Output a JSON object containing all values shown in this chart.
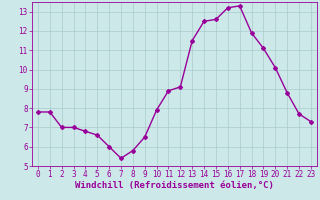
{
  "x": [
    0,
    1,
    2,
    3,
    4,
    5,
    6,
    7,
    8,
    9,
    10,
    11,
    12,
    13,
    14,
    15,
    16,
    17,
    18,
    19,
    20,
    21,
    22,
    23
  ],
  "y": [
    7.8,
    7.8,
    7.0,
    7.0,
    6.8,
    6.6,
    6.0,
    5.4,
    5.8,
    6.5,
    7.9,
    8.9,
    9.1,
    11.5,
    12.5,
    12.6,
    13.2,
    13.3,
    11.9,
    11.1,
    10.1,
    8.8,
    7.7,
    7.3
  ],
  "line_color": "#990099",
  "marker": "D",
  "marker_size": 2.0,
  "line_width": 1.0,
  "xlabel": "Windchill (Refroidissement éolien,°C)",
  "xlabel_fontsize": 6.5,
  "ylim": [
    5,
    13.5
  ],
  "xlim": [
    -0.5,
    23.5
  ],
  "yticks": [
    5,
    6,
    7,
    8,
    9,
    10,
    11,
    12,
    13
  ],
  "xticks": [
    0,
    1,
    2,
    3,
    4,
    5,
    6,
    7,
    8,
    9,
    10,
    11,
    12,
    13,
    14,
    15,
    16,
    17,
    18,
    19,
    20,
    21,
    22,
    23
  ],
  "background_color": "#cce8e8",
  "grid_color": "#aacccc",
  "tick_fontsize": 5.5,
  "font_family": "monospace"
}
